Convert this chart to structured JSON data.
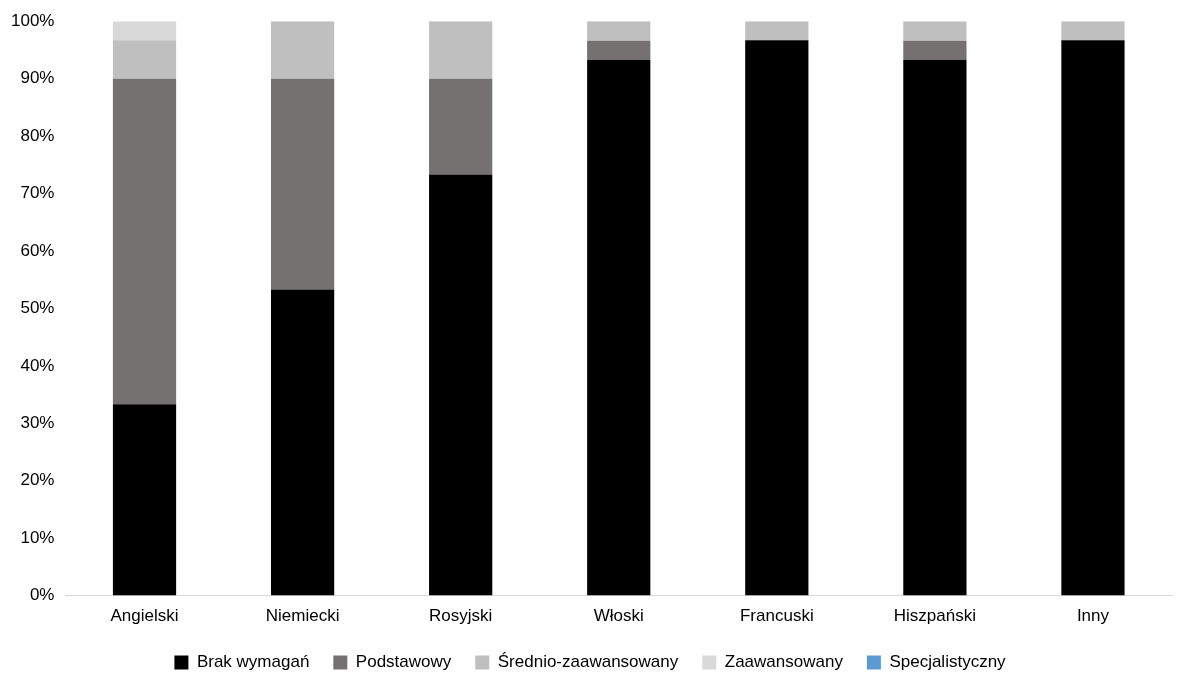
{
  "chart_data": {
    "type": "bar",
    "stacked": true,
    "categories": [
      "Angielski",
      "Niemiecki",
      "Rosyjski",
      "Włoski",
      "Francuski",
      "Hiszpański",
      "Inny"
    ],
    "series": [
      {
        "name": "Brak wymagań",
        "color": "#000000",
        "values": [
          33.3,
          53.3,
          73.3,
          93.3,
          96.7,
          93.3,
          96.7
        ]
      },
      {
        "name": "Podstawowy",
        "color": "#767171",
        "values": [
          56.7,
          36.7,
          16.7,
          3.3,
          0,
          3.3,
          0
        ]
      },
      {
        "name": "Średnio-zaawansowany",
        "color": "#bfbfbf",
        "values": [
          6.7,
          10,
          10,
          3.4,
          3.3,
          3.4,
          3.3
        ]
      },
      {
        "name": "Zaawansowany",
        "color": "#d9d9d9",
        "values": [
          3.3,
          0,
          0,
          0,
          0,
          0,
          0
        ]
      },
      {
        "name": "Specjalistyczny",
        "color": "#5b9bd5",
        "values": [
          0,
          0,
          0,
          0,
          0,
          0,
          0
        ]
      }
    ],
    "ylim": [
      0,
      100
    ],
    "yticks": [
      {
        "value": 0,
        "label": "0%"
      },
      {
        "value": 10,
        "label": "10%"
      },
      {
        "value": 20,
        "label": "20%"
      },
      {
        "value": 30,
        "label": "30%"
      },
      {
        "value": 40,
        "label": "40%"
      },
      {
        "value": 50,
        "label": "50%"
      },
      {
        "value": 60,
        "label": "60%"
      },
      {
        "value": 70,
        "label": "70%"
      },
      {
        "value": 80,
        "label": "80%"
      },
      {
        "value": 90,
        "label": "90%"
      },
      {
        "value": 100,
        "label": "100%"
      }
    ],
    "legend": "bottom"
  }
}
